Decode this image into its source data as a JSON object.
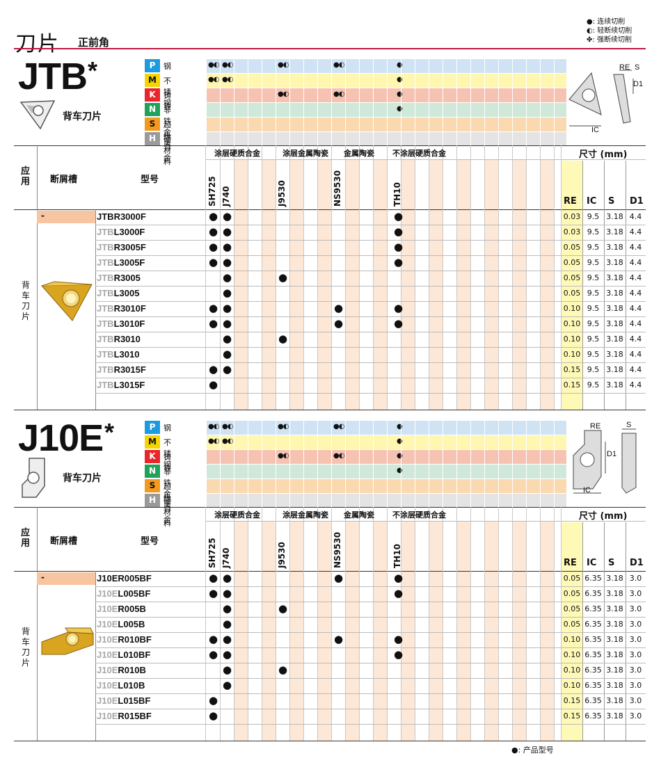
{
  "header": {
    "title": "刀片",
    "subtitle": "正前角",
    "legend": [
      {
        "symbol": "●",
        "label": ": 连续切削"
      },
      {
        "symbol": "◐",
        "label": ": 轻断续切削"
      },
      {
        "symbol": "✤",
        "label": ": 强断续切削"
      }
    ]
  },
  "materials": [
    {
      "code": "P",
      "name": "钢",
      "color": "#1d9be0",
      "band": "#cfe3f5"
    },
    {
      "code": "M",
      "name": "不锈钢",
      "color": "#f5d400",
      "band": "#fff6b0"
    },
    {
      "code": "K",
      "name": "铸铁",
      "color": "#e8262b",
      "band": "#f6c3b3"
    },
    {
      "code": "N",
      "name": "非铁金属",
      "color": "#1fa35b",
      "band": "#cfe8d9"
    },
    {
      "code": "S",
      "name": "超级合金",
      "color": "#f39a1e",
      "band": "#fbd9b0"
    },
    {
      "code": "H",
      "name": "硬材料",
      "color": "#9a9a9a",
      "band": "#e4e4e4"
    }
  ],
  "table_header": {
    "application": "应用",
    "chipbreaker": "断屑槽",
    "model": "型号",
    "groups": [
      "涂层硬质合金",
      "涂层金属陶瓷",
      "金属陶瓷",
      "不涂层硬质合金"
    ],
    "grades": [
      "SH725",
      "J740",
      "J9530",
      "NS9530",
      "TH10"
    ],
    "dims_title": "尺寸 (mm)",
    "dims": [
      "RE",
      "IC",
      "S",
      "D1"
    ]
  },
  "sections": [
    {
      "title": "JTB",
      "star": "*",
      "type": "背车刀片",
      "side_label": "背车刀片",
      "chipbreaker": "-",
      "diagram_labels": [
        "RE",
        "S",
        "D1",
        "IC"
      ],
      "material_marks": [
        [
          "●◐",
          "●◐",
          "",
          "●◐",
          "",
          "●◐",
          "",
          "●"
        ],
        [
          "●◐",
          "●◐",
          "",
          "",
          "",
          "",
          "",
          "●"
        ],
        [
          "",
          "",
          "",
          "●◐",
          "",
          "●◐",
          "",
          "●"
        ],
        [
          "",
          "",
          "",
          "",
          "",
          "",
          "",
          "●"
        ],
        [
          "",
          "",
          "",
          "",
          "",
          "",
          "",
          ""
        ],
        [
          "",
          "",
          "",
          "",
          "",
          "",
          "",
          ""
        ]
      ],
      "rows": [
        {
          "prefix": "JTB",
          "suffix": "R3000F",
          "full": true,
          "dots": [
            1,
            1,
            0,
            0,
            1
          ],
          "re": "0.03",
          "ic": "9.5",
          "s": "3.18",
          "d1": "4.4"
        },
        {
          "prefix": "JTB",
          "suffix": "L3000F",
          "full": false,
          "dots": [
            1,
            1,
            0,
            0,
            1
          ],
          "re": "0.03",
          "ic": "9.5",
          "s": "3.18",
          "d1": "4.4"
        },
        {
          "prefix": "JTB",
          "suffix": "R3005F",
          "full": false,
          "dots": [
            1,
            1,
            0,
            0,
            1
          ],
          "re": "0.05",
          "ic": "9.5",
          "s": "3.18",
          "d1": "4.4"
        },
        {
          "prefix": "JTB",
          "suffix": "L3005F",
          "full": false,
          "dots": [
            1,
            1,
            0,
            0,
            1
          ],
          "re": "0.05",
          "ic": "9.5",
          "s": "3.18",
          "d1": "4.4"
        },
        {
          "prefix": "JTB",
          "suffix": "R3005",
          "full": false,
          "dots": [
            0,
            1,
            1,
            0,
            0
          ],
          "re": "0.05",
          "ic": "9.5",
          "s": "3.18",
          "d1": "4.4"
        },
        {
          "prefix": "JTB",
          "suffix": "L3005",
          "full": false,
          "dots": [
            0,
            1,
            0,
            0,
            0
          ],
          "re": "0.05",
          "ic": "9.5",
          "s": "3.18",
          "d1": "4.4"
        },
        {
          "prefix": "JTB",
          "suffix": "R3010F",
          "full": false,
          "dots": [
            1,
            1,
            0,
            1,
            1
          ],
          "re": "0.10",
          "ic": "9.5",
          "s": "3.18",
          "d1": "4.4"
        },
        {
          "prefix": "JTB",
          "suffix": "L3010F",
          "full": false,
          "dots": [
            1,
            1,
            0,
            1,
            1
          ],
          "re": "0.10",
          "ic": "9.5",
          "s": "3.18",
          "d1": "4.4"
        },
        {
          "prefix": "JTB",
          "suffix": "R3010",
          "full": false,
          "dots": [
            0,
            1,
            1,
            0,
            0
          ],
          "re": "0.10",
          "ic": "9.5",
          "s": "3.18",
          "d1": "4.4"
        },
        {
          "prefix": "JTB",
          "suffix": "L3010",
          "full": false,
          "dots": [
            0,
            1,
            0,
            0,
            0
          ],
          "re": "0.10",
          "ic": "9.5",
          "s": "3.18",
          "d1": "4.4"
        },
        {
          "prefix": "JTB",
          "suffix": "R3015F",
          "full": false,
          "dots": [
            1,
            1,
            0,
            0,
            0
          ],
          "re": "0.15",
          "ic": "9.5",
          "s": "3.18",
          "d1": "4.4"
        },
        {
          "prefix": "JTB",
          "suffix": "L3015F",
          "full": false,
          "dots": [
            1,
            0,
            0,
            0,
            0
          ],
          "re": "0.15",
          "ic": "9.5",
          "s": "3.18",
          "d1": "4.4"
        }
      ]
    },
    {
      "title": "J10E",
      "star": "*",
      "type": "背车刀片",
      "side_label": "背车刀片",
      "chipbreaker": "-",
      "diagram_labels": [
        "RE",
        "S",
        "D1",
        "IC"
      ],
      "material_marks": [
        [
          "●◐",
          "●◐",
          "",
          "●◐",
          "",
          "●◐",
          "",
          "●"
        ],
        [
          "●◐",
          "●◐",
          "",
          "",
          "",
          "",
          "",
          "●"
        ],
        [
          "",
          "",
          "",
          "●◐",
          "",
          "●◐",
          "",
          "●"
        ],
        [
          "",
          "",
          "",
          "",
          "",
          "",
          "",
          "●"
        ],
        [
          "",
          "",
          "",
          "",
          "",
          "",
          "",
          ""
        ],
        [
          "",
          "",
          "",
          "",
          "",
          "",
          "",
          ""
        ]
      ],
      "rows": [
        {
          "prefix": "J10E",
          "suffix": "R005BF",
          "full": true,
          "dots": [
            1,
            1,
            0,
            1,
            1
          ],
          "re": "0.05",
          "ic": "6.35",
          "s": "3.18",
          "d1": "3.0"
        },
        {
          "prefix": "J10E",
          "suffix": "L005BF",
          "full": false,
          "dots": [
            1,
            1,
            0,
            0,
            1
          ],
          "re": "0.05",
          "ic": "6.35",
          "s": "3.18",
          "d1": "3.0"
        },
        {
          "prefix": "J10E",
          "suffix": "R005B",
          "full": false,
          "dots": [
            0,
            1,
            1,
            0,
            0
          ],
          "re": "0.05",
          "ic": "6.35",
          "s": "3.18",
          "d1": "3.0"
        },
        {
          "prefix": "J10E",
          "suffix": "L005B",
          "full": false,
          "dots": [
            0,
            1,
            0,
            0,
            0
          ],
          "re": "0.05",
          "ic": "6.35",
          "s": "3.18",
          "d1": "3.0"
        },
        {
          "prefix": "J10E",
          "suffix": "R010BF",
          "full": false,
          "dots": [
            1,
            1,
            0,
            1,
            1
          ],
          "re": "0.10",
          "ic": "6.35",
          "s": "3.18",
          "d1": "3.0"
        },
        {
          "prefix": "J10E",
          "suffix": "L010BF",
          "full": false,
          "dots": [
            1,
            1,
            0,
            0,
            1
          ],
          "re": "0.10",
          "ic": "6.35",
          "s": "3.18",
          "d1": "3.0"
        },
        {
          "prefix": "J10E",
          "suffix": "R010B",
          "full": false,
          "dots": [
            0,
            1,
            1,
            0,
            0
          ],
          "re": "0.10",
          "ic": "6.35",
          "s": "3.18",
          "d1": "3.0"
        },
        {
          "prefix": "J10E",
          "suffix": "L010B",
          "full": false,
          "dots": [
            0,
            1,
            0,
            0,
            0
          ],
          "re": "0.10",
          "ic": "6.35",
          "s": "3.18",
          "d1": "3.0"
        },
        {
          "prefix": "J10E",
          "suffix": "L015BF",
          "full": false,
          "dots": [
            1,
            0,
            0,
            0,
            0
          ],
          "re": "0.15",
          "ic": "6.35",
          "s": "3.18",
          "d1": "3.0"
        },
        {
          "prefix": "J10E",
          "suffix": "R015BF",
          "full": false,
          "dots": [
            1,
            0,
            0,
            0,
            0
          ],
          "re": "0.15",
          "ic": "6.35",
          "s": "3.18",
          "d1": "3.0"
        }
      ]
    }
  ],
  "footnote": "●: 产品型号"
}
